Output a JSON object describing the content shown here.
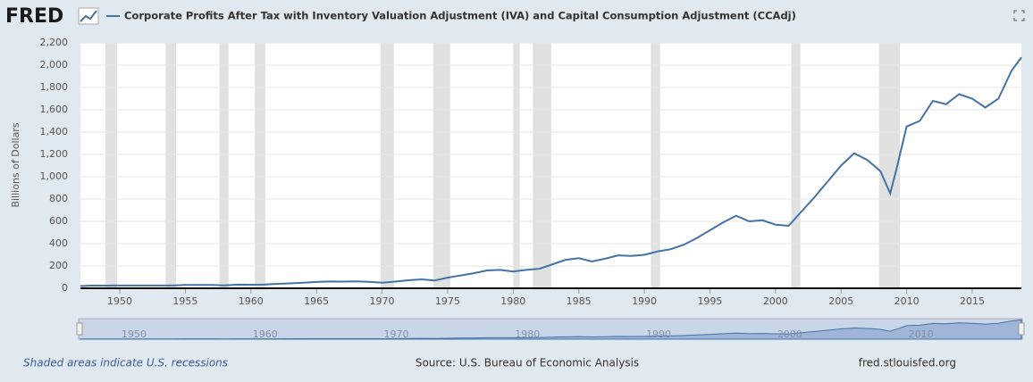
{
  "logo": "FRED",
  "chart_data": {
    "type": "line",
    "title": "Corporate Profits After Tax with Inventory Valuation Adjustment (IVA) and Capital Consumption Adjustment (CCAdj)",
    "y_label": "Billions of Dollars",
    "x": [
      1947,
      1948,
      1949,
      1950,
      1951,
      1952,
      1953,
      1954,
      1955,
      1956,
      1957,
      1958,
      1959,
      1960,
      1961,
      1962,
      1963,
      1964,
      1965,
      1966,
      1967,
      1968,
      1969,
      1970,
      1971,
      1972,
      1973,
      1974,
      1975,
      1976,
      1977,
      1978,
      1979,
      1980,
      1981,
      1982,
      1983,
      1984,
      1985,
      1986,
      1987,
      1988,
      1989,
      1990,
      1991,
      1992,
      1993,
      1994,
      1995,
      1996,
      1997,
      1998,
      1999,
      2000,
      2001,
      2002,
      2003,
      2004,
      2005,
      2006,
      2007,
      2008,
      2008.75,
      2009.25,
      2010,
      2011,
      2012,
      2013,
      2014,
      2015,
      2016,
      2017,
      2018,
      2018.75
    ],
    "series": [
      {
        "name": "Corporate Profits After Tax with Inventory Valuation Adjustment (IVA) and Capital Consumption Adjustment (CCAdj)",
        "color": "#4572a7",
        "values": [
          20,
          25,
          24,
          25,
          25,
          25,
          25,
          25,
          30,
          30,
          30,
          26,
          33,
          32,
          33,
          40,
          44,
          50,
          57,
          61,
          60,
          62,
          58,
          50,
          60,
          72,
          80,
          70,
          95,
          115,
          135,
          160,
          165,
          150,
          165,
          175,
          215,
          255,
          270,
          240,
          265,
          295,
          290,
          300,
          330,
          350,
          390,
          450,
          520,
          590,
          650,
          600,
          610,
          570,
          560,
          690,
          820,
          960,
          1100,
          1210,
          1150,
          1050,
          850,
          1080,
          1450,
          1500,
          1680,
          1650,
          1740,
          1700,
          1620,
          1700,
          1950,
          2070
        ]
      }
    ],
    "xlim": [
      1947,
      2018.75
    ],
    "xticks": [
      1950,
      1955,
      1960,
      1965,
      1970,
      1975,
      1980,
      1985,
      1990,
      1995,
      2000,
      2005,
      2010,
      2015
    ],
    "ylim": [
      0,
      2200
    ],
    "yticks": [
      0,
      200,
      400,
      600,
      800,
      {
        "value": 1000,
        "label": "1,000"
      },
      {
        "value": 1200,
        "label": "1,200"
      },
      {
        "value": 1400,
        "label": "1,400"
      },
      {
        "value": 1600,
        "label": "1,600"
      },
      {
        "value": 1800,
        "label": "1,800"
      },
      {
        "value": 2000,
        "label": "2,000"
      },
      {
        "value": 2200,
        "label": "2,200"
      }
    ],
    "grid": true,
    "recessions": [
      [
        1948.9,
        1949.8
      ],
      [
        1953.5,
        1954.3
      ],
      [
        1957.6,
        1958.3
      ],
      [
        1960.3,
        1961.1
      ],
      [
        1969.9,
        1970.9
      ],
      [
        1973.9,
        1975.2
      ],
      [
        1980.0,
        1980.5
      ],
      [
        1981.5,
        1982.9
      ],
      [
        1990.5,
        1991.2
      ],
      [
        2001.2,
        2001.9
      ],
      [
        2007.9,
        2009.5
      ]
    ],
    "recession_color": "#e1e1e1",
    "navigator_ticks": [
      1950,
      1960,
      1970,
      1980,
      1990,
      2000,
      2010
    ]
  },
  "footer": {
    "note": "Shaded areas indicate U.S. recessions",
    "source": "Source: U.S. Bureau of Economic Analysis",
    "site": "fred.stlouisfed.org"
  }
}
